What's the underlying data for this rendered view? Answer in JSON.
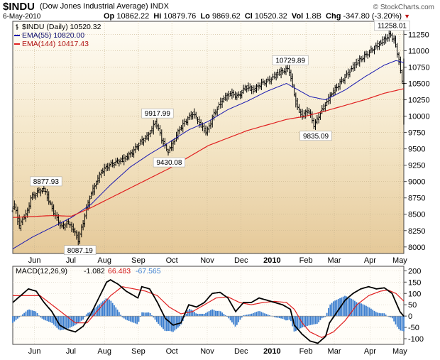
{
  "header": {
    "symbol": "$INDU",
    "description": "(Dow Jones Industrial Average)  INDX",
    "brand": "© StockCharts.com",
    "date": "6-May-2010",
    "op_label": "Op",
    "op": "10862.22",
    "hi_label": "Hi",
    "hi": "10879.76",
    "lo_label": "Lo",
    "lo": "9869.62",
    "cl_label": "Cl",
    "cl": "10520.32",
    "vol_label": "Vol",
    "vol": "1.8B",
    "chg_label": "Chg",
    "chg": "-347.80 (-3.20%)"
  },
  "colors": {
    "price": "#000000",
    "ema55": "#1a1ab0",
    "ema144": "#e02020",
    "macd": "#000000",
    "signal": "#e02020",
    "histogram": "#3d7fcf",
    "down_arrow": "#c01818"
  },
  "chart_data": [
    {
      "type": "line",
      "title": "$INDU (Daily) 10520.32",
      "ylim": [
        7900,
        11450
      ],
      "yticks": [
        8000,
        8250,
        8500,
        8750,
        9000,
        9250,
        9500,
        9750,
        10000,
        10250,
        10500,
        10750,
        11000,
        11250
      ],
      "x_months": [
        {
          "label": "Jun",
          "t": 0.0555,
          "gridline": true
        },
        {
          "label": "Jul",
          "t": 0.1487,
          "gridline": true
        },
        {
          "label": "Aug",
          "t": 0.2345,
          "gridline": true
        },
        {
          "label": "Sep",
          "t": 0.3211,
          "gridline": true
        },
        {
          "label": "Oct",
          "t": 0.4068,
          "gridline": true
        },
        {
          "label": "Nov",
          "t": 0.4973,
          "gridline": true
        },
        {
          "label": "Dec",
          "t": 0.5839,
          "gridline": true
        },
        {
          "label": "2010",
          "t": 0.6632,
          "gridline": true,
          "bold": true
        },
        {
          "label": "Feb",
          "t": 0.7498,
          "gridline": true
        },
        {
          "label": "Mar",
          "t": 0.8222,
          "gridline": true
        },
        {
          "label": "Apr",
          "t": 0.9136,
          "gridline": true
        },
        {
          "label": "May",
          "t": 0.9899,
          "gridline": true
        }
      ],
      "legend": [
        {
          "key": "price",
          "label": "$INDU (Daily) 10520.32"
        },
        {
          "key": "ema55",
          "label": "EMA(55) 10820.00"
        },
        {
          "key": "ema144",
          "label": "EMA(144) 10417.43"
        }
      ],
      "legend_position": "top-left",
      "series": [
        {
          "name": "$INDU",
          "key": "price",
          "style": "ohlc",
          "anchors": [
            [
              0,
              8550
            ],
            [
              0.01,
              8650
            ],
            [
              0.02,
              8300
            ],
            [
              0.03,
              8450
            ],
            [
              0.04,
              8500
            ],
            [
              0.05,
              8750
            ],
            [
              0.07,
              8850
            ],
            [
              0.085,
              8880
            ],
            [
              0.1,
              8650
            ],
            [
              0.115,
              8450
            ],
            [
              0.13,
              8300
            ],
            [
              0.145,
              8380
            ],
            [
              0.16,
              8250
            ],
            [
              0.172,
              8100
            ],
            [
              0.185,
              8400
            ],
            [
              0.2,
              8750
            ],
            [
              0.215,
              8950
            ],
            [
              0.23,
              9150
            ],
            [
              0.25,
              9250
            ],
            [
              0.27,
              9300
            ],
            [
              0.29,
              9350
            ],
            [
              0.31,
              9450
            ],
            [
              0.33,
              9600
            ],
            [
              0.35,
              9700
            ],
            [
              0.37,
              9920
            ],
            [
              0.385,
              9650
            ],
            [
              0.4,
              9450
            ],
            [
              0.415,
              9600
            ],
            [
              0.43,
              9800
            ],
            [
              0.45,
              9950
            ],
            [
              0.465,
              10050
            ],
            [
              0.48,
              9900
            ],
            [
              0.5,
              9750
            ],
            [
              0.52,
              10050
            ],
            [
              0.54,
              10250
            ],
            [
              0.56,
              10350
            ],
            [
              0.58,
              10300
            ],
            [
              0.6,
              10450
            ],
            [
              0.62,
              10400
            ],
            [
              0.64,
              10500
            ],
            [
              0.66,
              10550
            ],
            [
              0.68,
              10650
            ],
            [
              0.7,
              10700
            ],
            [
              0.71,
              10730
            ],
            [
              0.72,
              10450
            ],
            [
              0.73,
              10150
            ],
            [
              0.745,
              10000
            ],
            [
              0.76,
              10100
            ],
            [
              0.775,
              9850
            ],
            [
              0.79,
              10050
            ],
            [
              0.805,
              10200
            ],
            [
              0.82,
              10350
            ],
            [
              0.84,
              10500
            ],
            [
              0.86,
              10650
            ],
            [
              0.88,
              10800
            ],
            [
              0.9,
              10900
            ],
            [
              0.92,
              11000
            ],
            [
              0.94,
              11100
            ],
            [
              0.96,
              11200
            ],
            [
              0.97,
              11250
            ],
            [
              0.98,
              11150
            ],
            [
              0.99,
              10900
            ],
            [
              1.0,
              10520
            ]
          ]
        },
        {
          "name": "EMA(55)",
          "key": "ema55",
          "style": "line",
          "anchors": [
            [
              0,
              7970
            ],
            [
              0.05,
              8150
            ],
            [
              0.1,
              8300
            ],
            [
              0.15,
              8450
            ],
            [
              0.2,
              8650
            ],
            [
              0.25,
              8950
            ],
            [
              0.3,
              9220
            ],
            [
              0.35,
              9420
            ],
            [
              0.4,
              9600
            ],
            [
              0.45,
              9790
            ],
            [
              0.5,
              9920
            ],
            [
              0.55,
              10100
            ],
            [
              0.6,
              10230
            ],
            [
              0.65,
              10380
            ],
            [
              0.7,
              10500
            ],
            [
              0.73,
              10400
            ],
            [
              0.76,
              10300
            ],
            [
              0.8,
              10250
            ],
            [
              0.85,
              10400
            ],
            [
              0.9,
              10600
            ],
            [
              0.95,
              10780
            ],
            [
              0.98,
              10850
            ],
            [
              1.0,
              10820
            ]
          ]
        },
        {
          "name": "EMA(144)",
          "key": "ema144",
          "style": "line",
          "anchors": [
            [
              0,
              8450
            ],
            [
              0.1,
              8480
            ],
            [
              0.15,
              8470
            ],
            [
              0.2,
              8600
            ],
            [
              0.3,
              8900
            ],
            [
              0.4,
              9200
            ],
            [
              0.5,
              9550
            ],
            [
              0.6,
              9780
            ],
            [
              0.7,
              9950
            ],
            [
              0.75,
              10000
            ],
            [
              0.8,
              10080
            ],
            [
              0.9,
              10250
            ],
            [
              0.95,
              10350
            ],
            [
              1.0,
              10420
            ]
          ]
        }
      ],
      "annotations": [
        {
          "text": "8877.93",
          "t": 0.085,
          "v": 8878,
          "pos": "above"
        },
        {
          "text": "8087.19",
          "t": 0.172,
          "v": 8087,
          "pos": "below"
        },
        {
          "text": "9917.99",
          "t": 0.37,
          "v": 9918,
          "pos": "above"
        },
        {
          "text": "9430.08",
          "t": 0.4,
          "v": 9430,
          "pos": "below"
        },
        {
          "text": "10729.89",
          "t": 0.71,
          "v": 10730,
          "pos": "above"
        },
        {
          "text": "9835.09",
          "t": 0.775,
          "v": 9835,
          "pos": "below"
        },
        {
          "text": "11258.01",
          "t": 0.97,
          "v": 11258,
          "pos": "above"
        }
      ]
    },
    {
      "type": "line",
      "title": "MACD(12,26,9)",
      "ylim": [
        -125,
        220
      ],
      "yticks": [
        -100,
        -50,
        0,
        50,
        100,
        150,
        200
      ],
      "legend": [
        {
          "key": "macd",
          "label": "MACD(12,26,9)",
          "value": "-1.082"
        },
        {
          "key": "signal",
          "value": "66.483"
        },
        {
          "key": "histogram",
          "value": "-67.565"
        }
      ],
      "legend_position": "top-left",
      "series": [
        {
          "name": "MACD",
          "key": "macd",
          "style": "line",
          "anchors": [
            [
              0,
              60
            ],
            [
              0.02,
              90
            ],
            [
              0.04,
              120
            ],
            [
              0.06,
              110
            ],
            [
              0.08,
              60
            ],
            [
              0.1,
              20
            ],
            [
              0.12,
              -40
            ],
            [
              0.14,
              -60
            ],
            [
              0.16,
              -70
            ],
            [
              0.18,
              -45
            ],
            [
              0.2,
              10
            ],
            [
              0.22,
              80
            ],
            [
              0.24,
              150
            ],
            [
              0.25,
              160
            ],
            [
              0.27,
              140
            ],
            [
              0.29,
              110
            ],
            [
              0.31,
              90
            ],
            [
              0.32,
              80
            ],
            [
              0.33,
              130
            ],
            [
              0.35,
              120
            ],
            [
              0.37,
              60
            ],
            [
              0.39,
              -10
            ],
            [
              0.41,
              -40
            ],
            [
              0.43,
              -30
            ],
            [
              0.45,
              50
            ],
            [
              0.47,
              40
            ],
            [
              0.49,
              60
            ],
            [
              0.51,
              100
            ],
            [
              0.53,
              105
            ],
            [
              0.55,
              80
            ],
            [
              0.56,
              50
            ],
            [
              0.57,
              20
            ],
            [
              0.59,
              60
            ],
            [
              0.61,
              60
            ],
            [
              0.63,
              80
            ],
            [
              0.65,
              70
            ],
            [
              0.67,
              60
            ],
            [
              0.69,
              50
            ],
            [
              0.71,
              30
            ],
            [
              0.72,
              -40
            ],
            [
              0.74,
              -80
            ],
            [
              0.76,
              -110
            ],
            [
              0.78,
              -120
            ],
            [
              0.8,
              -90
            ],
            [
              0.81,
              -30
            ],
            [
              0.83,
              20
            ],
            [
              0.85,
              70
            ],
            [
              0.87,
              100
            ],
            [
              0.89,
              120
            ],
            [
              0.91,
              130
            ],
            [
              0.93,
              120
            ],
            [
              0.95,
              125
            ],
            [
              0.97,
              100
            ],
            [
              0.98,
              60
            ],
            [
              0.99,
              20
            ],
            [
              1.0,
              -1
            ]
          ]
        },
        {
          "name": "Signal",
          "key": "signal",
          "style": "line",
          "anchors": [
            [
              0,
              90
            ],
            [
              0.04,
              90
            ],
            [
              0.07,
              90
            ],
            [
              0.1,
              50
            ],
            [
              0.13,
              10
            ],
            [
              0.16,
              -30
            ],
            [
              0.19,
              -30
            ],
            [
              0.22,
              30
            ],
            [
              0.25,
              90
            ],
            [
              0.28,
              130
            ],
            [
              0.31,
              120
            ],
            [
              0.34,
              110
            ],
            [
              0.37,
              90
            ],
            [
              0.4,
              40
            ],
            [
              0.43,
              10
            ],
            [
              0.46,
              20
            ],
            [
              0.49,
              50
            ],
            [
              0.52,
              80
            ],
            [
              0.55,
              85
            ],
            [
              0.58,
              60
            ],
            [
              0.61,
              50
            ],
            [
              0.64,
              60
            ],
            [
              0.67,
              65
            ],
            [
              0.7,
              60
            ],
            [
              0.72,
              30
            ],
            [
              0.74,
              -30
            ],
            [
              0.76,
              -70
            ],
            [
              0.79,
              -95
            ],
            [
              0.82,
              -70
            ],
            [
              0.85,
              -20
            ],
            [
              0.88,
              50
            ],
            [
              0.91,
              90
            ],
            [
              0.94,
              110
            ],
            [
              0.96,
              115
            ],
            [
              0.98,
              100
            ],
            [
              1.0,
              66
            ]
          ]
        }
      ],
      "x_months": [
        "Jun",
        "Jul",
        "Aug",
        "Sep",
        "Oct",
        "Nov",
        "Dec",
        "2010",
        "Feb",
        "Mar",
        "Apr",
        "May"
      ]
    }
  ]
}
